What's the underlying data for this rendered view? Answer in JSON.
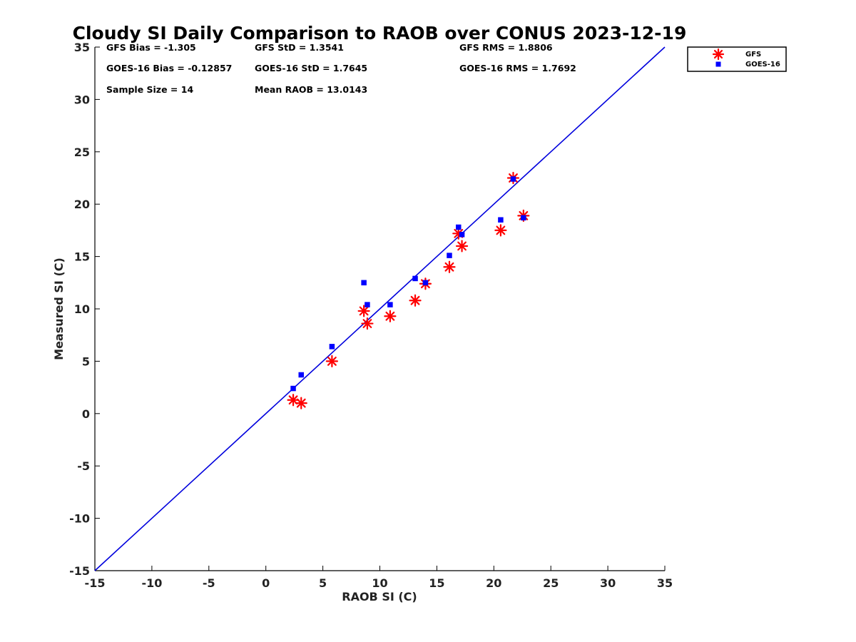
{
  "chart_data": {
    "type": "scatter",
    "title": "Cloudy SI Daily Comparison to RAOB over CONUS 2023-12-19",
    "xlabel": "RAOB SI (C)",
    "ylabel": "Measured SI (C)",
    "xlim": [
      -15,
      35
    ],
    "ylim": [
      -15,
      35
    ],
    "xticks": [
      -15,
      -10,
      -5,
      0,
      5,
      10,
      15,
      20,
      25,
      30,
      35
    ],
    "yticks": [
      -15,
      -10,
      -5,
      0,
      5,
      10,
      15,
      20,
      25,
      30,
      35
    ],
    "grid": false,
    "legend_position": "outside-top-right",
    "reference_line": {
      "x": [
        -15,
        35
      ],
      "y": [
        -15,
        35
      ],
      "color": "#0000dd"
    },
    "stats": {
      "gfs_bias": "GFS Bias = -1.305",
      "gfs_std": "GFS StD = 1.3541",
      "gfs_rms": "GFS RMS = 1.8806",
      "goes_bias": "GOES-16 Bias = -0.12857",
      "goes_std": "GOES-16 StD = 1.7645",
      "goes_rms": "GOES-16 RMS = 1.7692",
      "sample_size": "Sample Size = 14",
      "mean_raob": "Mean RAOB = 13.0143"
    },
    "series": [
      {
        "name": "GFS",
        "marker": "asterisk",
        "color": "#ff0000",
        "points": [
          [
            2.4,
            1.3
          ],
          [
            3.1,
            1.0
          ],
          [
            5.8,
            5.0
          ],
          [
            8.6,
            9.8
          ],
          [
            8.9,
            8.6
          ],
          [
            10.9,
            9.3
          ],
          [
            13.1,
            10.8
          ],
          [
            14.0,
            12.4
          ],
          [
            16.1,
            14.0
          ],
          [
            16.9,
            17.2
          ],
          [
            17.2,
            16.0
          ],
          [
            20.6,
            17.5
          ],
          [
            21.7,
            22.5
          ],
          [
            22.6,
            18.9
          ]
        ]
      },
      {
        "name": "GOES-16",
        "marker": "square",
        "color": "#0000ff",
        "points": [
          [
            2.4,
            2.4
          ],
          [
            3.1,
            3.7
          ],
          [
            5.8,
            6.4
          ],
          [
            8.6,
            12.5
          ],
          [
            8.9,
            10.4
          ],
          [
            10.9,
            10.4
          ],
          [
            13.1,
            12.9
          ],
          [
            14.0,
            12.5
          ],
          [
            16.1,
            15.1
          ],
          [
            16.9,
            17.8
          ],
          [
            17.2,
            17.1
          ],
          [
            20.6,
            18.5
          ],
          [
            21.7,
            22.4
          ],
          [
            22.6,
            18.7
          ]
        ]
      }
    ]
  }
}
